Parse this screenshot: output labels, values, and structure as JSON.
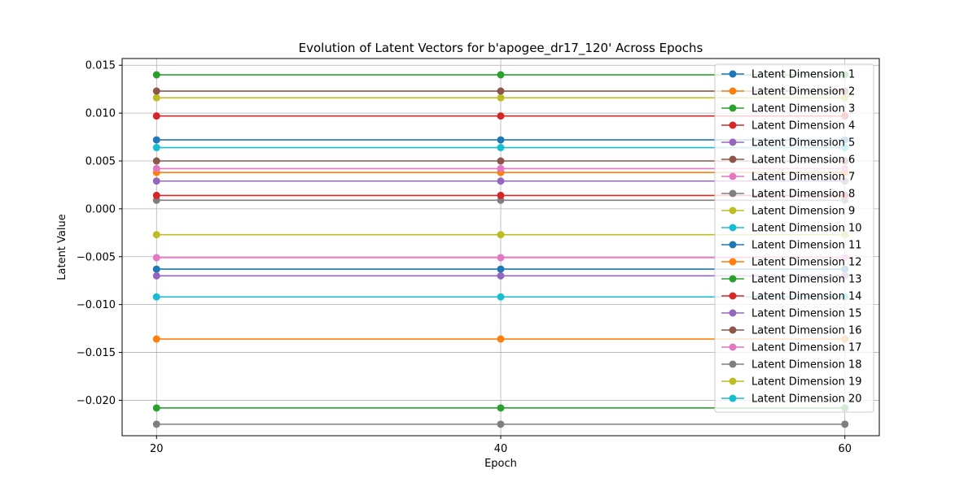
{
  "chart_data": {
    "type": "line",
    "title": "Evolution of Latent Vectors for b'apogee_dr17_120' Across Epochs",
    "xlabel": "Epoch",
    "ylabel": "Latent Value",
    "x": [
      20,
      40,
      60
    ],
    "x_ticks": [
      20,
      40,
      60
    ],
    "xlim": [
      18,
      62
    ],
    "ylim": [
      -0.0237,
      0.0157
    ],
    "y_ticks": [
      -0.02,
      -0.015,
      -0.01,
      -0.005,
      0.0,
      0.005,
      0.01,
      0.015
    ],
    "y_tick_labels": [
      "−0.020",
      "−0.015",
      "−0.010",
      "−0.005",
      "0.000",
      "0.005",
      "0.010",
      "0.015"
    ],
    "grid": true,
    "legend_position": "top-right",
    "series": [
      {
        "name": "Latent Dimension 1",
        "color": "#1f77b4",
        "values": [
          0.0072,
          0.0072,
          0.0072
        ]
      },
      {
        "name": "Latent Dimension 2",
        "color": "#ff7f0e",
        "values": [
          0.0038,
          0.0038,
          0.0038
        ]
      },
      {
        "name": "Latent Dimension 3",
        "color": "#2ca02c",
        "values": [
          0.014,
          0.014,
          0.014
        ]
      },
      {
        "name": "Latent Dimension 4",
        "color": "#d62728",
        "values": [
          0.0097,
          0.0097,
          0.0097
        ]
      },
      {
        "name": "Latent Dimension 5",
        "color": "#9467bd",
        "values": [
          0.0029,
          0.0029,
          0.0029
        ]
      },
      {
        "name": "Latent Dimension 6",
        "color": "#8c564b",
        "values": [
          0.005,
          0.005,
          0.005
        ]
      },
      {
        "name": "Latent Dimension 7",
        "color": "#e377c2",
        "values": [
          0.0042,
          0.0042,
          0.0042
        ]
      },
      {
        "name": "Latent Dimension 8",
        "color": "#7f7f7f",
        "values": [
          0.0009,
          0.0009,
          0.0009
        ]
      },
      {
        "name": "Latent Dimension 9",
        "color": "#bcbd22",
        "values": [
          0.0116,
          0.0116,
          0.0116
        ]
      },
      {
        "name": "Latent Dimension 10",
        "color": "#17becf",
        "values": [
          0.0064,
          0.0064,
          0.0064
        ]
      },
      {
        "name": "Latent Dimension 11",
        "color": "#1f77b4",
        "values": [
          -0.0063,
          -0.0063,
          -0.0063
        ]
      },
      {
        "name": "Latent Dimension 12",
        "color": "#ff7f0e",
        "values": [
          -0.0136,
          -0.0136,
          -0.0136
        ]
      },
      {
        "name": "Latent Dimension 13",
        "color": "#2ca02c",
        "values": [
          -0.0208,
          -0.0208,
          -0.0208
        ]
      },
      {
        "name": "Latent Dimension 14",
        "color": "#d62728",
        "values": [
          0.0014,
          0.0014,
          0.0014
        ]
      },
      {
        "name": "Latent Dimension 15",
        "color": "#9467bd",
        "values": [
          -0.007,
          -0.007,
          -0.007
        ]
      },
      {
        "name": "Latent Dimension 16",
        "color": "#8c564b",
        "values": [
          0.0123,
          0.0123,
          0.0123
        ]
      },
      {
        "name": "Latent Dimension 17",
        "color": "#e377c2",
        "values": [
          -0.0051,
          -0.0051,
          -0.0051
        ]
      },
      {
        "name": "Latent Dimension 18",
        "color": "#7f7f7f",
        "values": [
          -0.0225,
          -0.0225,
          -0.0225
        ]
      },
      {
        "name": "Latent Dimension 19",
        "color": "#bcbd22",
        "values": [
          -0.0027,
          -0.0027,
          -0.0027
        ]
      },
      {
        "name": "Latent Dimension 20",
        "color": "#17becf",
        "values": [
          -0.0092,
          -0.0092,
          -0.0092
        ]
      }
    ]
  }
}
